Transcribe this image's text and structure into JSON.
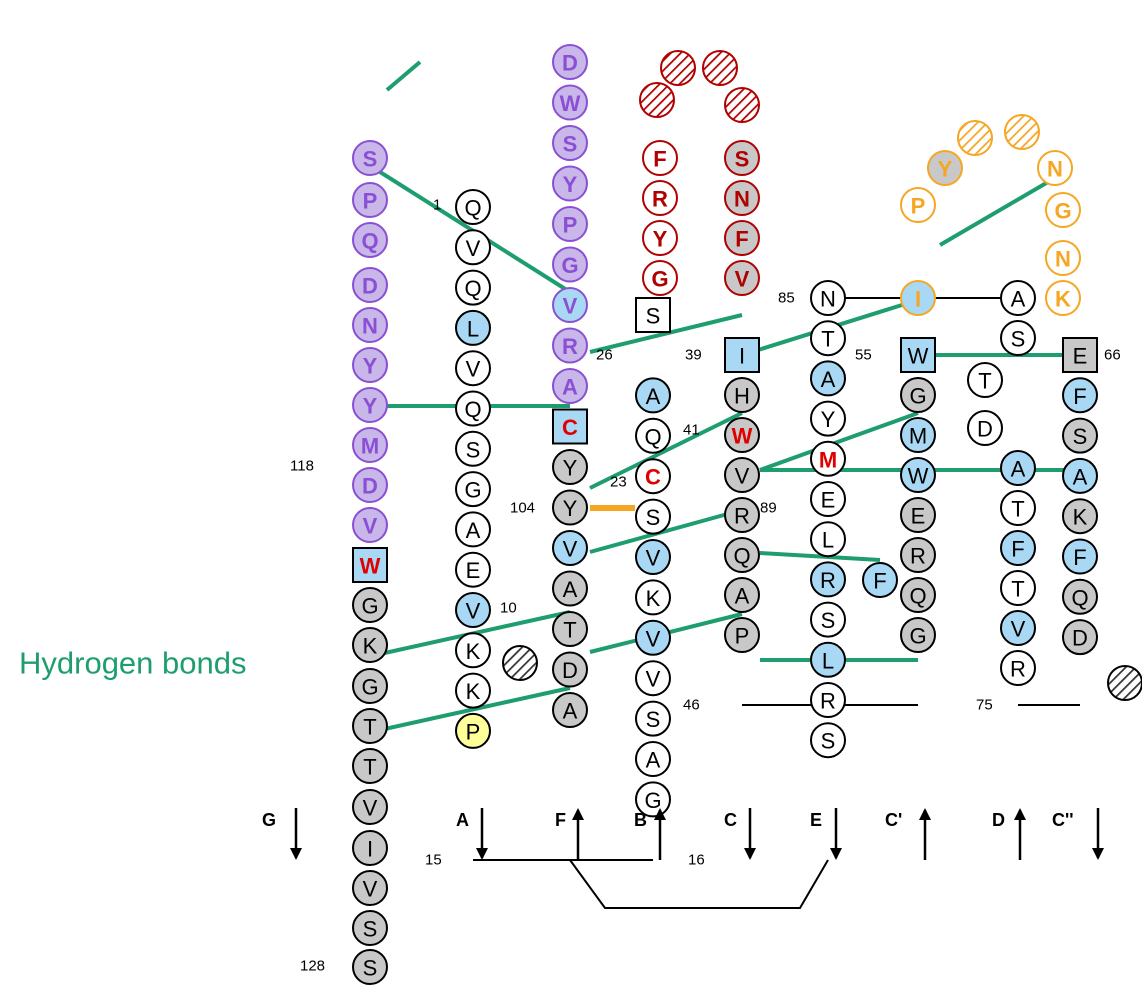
{
  "legend": {
    "text": "Hydrogen bonds",
    "color": "#1e9e6e"
  },
  "colors": {
    "purple": "#8a4fd4",
    "purple_fill": "#c8b7e8",
    "red": "#b00000",
    "orange": "#f5a623",
    "orange_fill": "#f9ce84",
    "gray_fill": "#c8c8c8",
    "blue_fill": "#a9d8f5",
    "yellow_fill": "#ffff99",
    "green": "#1e9e6e",
    "bond_orange": "#f5a623",
    "highlight_text": "#e00000"
  },
  "strand_labels": [
    "G",
    "A",
    "F",
    "B",
    "C",
    "E",
    "C'",
    "D",
    "C''"
  ],
  "strand_directions": [
    "down",
    "down",
    "up",
    "up",
    "down",
    "down",
    "up",
    "up",
    "down"
  ],
  "residue_numbers": [
    "1",
    "10",
    "15",
    "16",
    "23",
    "26",
    "39",
    "41",
    "46",
    "55",
    "66",
    "75",
    "85",
    "89",
    "104",
    "118",
    "128"
  ],
  "chains": {
    "G": "SSVIVTTGKGW",
    "DL": "VDMYYNDQPS",
    "A": "QVQLVQSGAEVKKP",
    "F": "DWSYPGVRACYYVATDA",
    "B": "SAQCSVKVVSAG",
    "CC": "FRYGSNFVIHWVRQAP",
    "E": "NTAYMELRSLRS",
    "Cp": "PYNGNKIWGMWERQG",
    "D": "ASTDATFTVR",
    "Cpp": "EFSAKFQD",
    "extra": "F"
  }
}
